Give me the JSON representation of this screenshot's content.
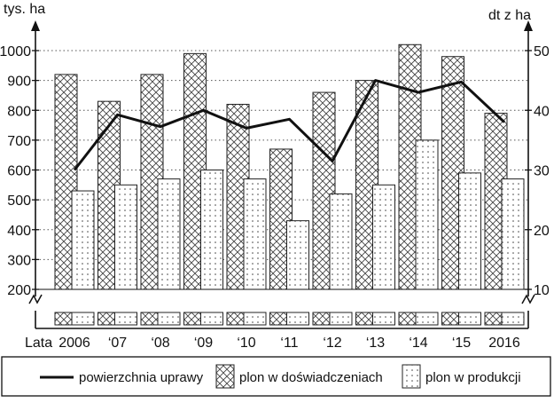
{
  "chart_data": {
    "type": "bar",
    "x_title": "Lata",
    "categories": [
      "2006",
      "‘07",
      "‘08",
      "‘09",
      "‘10",
      "‘11",
      "‘12",
      "‘13",
      "‘14",
      "‘15",
      "2016"
    ],
    "y_left": {
      "label": "tys. ha",
      "ticks": [
        200,
        300,
        400,
        500,
        600,
        700,
        800,
        900,
        1000
      ],
      "lim": [
        200,
        1000
      ],
      "break": true
    },
    "y_right": {
      "label": "dt z ha",
      "ticks": [
        10,
        20,
        30,
        40,
        50
      ],
      "lim": [
        10,
        50
      ],
      "break": true
    },
    "grid": "horizontal-dotted",
    "series": [
      {
        "name": "powierzchnia uprawy",
        "kind": "line",
        "axis": "left",
        "color": "#111111",
        "values": [
          600,
          785,
          745,
          800,
          740,
          770,
          630,
          900,
          860,
          895,
          760
        ]
      },
      {
        "name": "plon w doświadczeniach",
        "kind": "bar",
        "axis": "right",
        "pattern": "crosshatch",
        "values": [
          46,
          41.5,
          46,
          49.5,
          41,
          33.5,
          43,
          45,
          51,
          49,
          39.5
        ]
      },
      {
        "name": "plon w produkcji",
        "kind": "bar",
        "axis": "right",
        "pattern": "dots",
        "values": [
          26.5,
          27.5,
          28.5,
          30,
          28.5,
          21.5,
          26,
          27.5,
          35,
          29.5,
          28.5
        ]
      }
    ],
    "legend_position": "bottom"
  }
}
